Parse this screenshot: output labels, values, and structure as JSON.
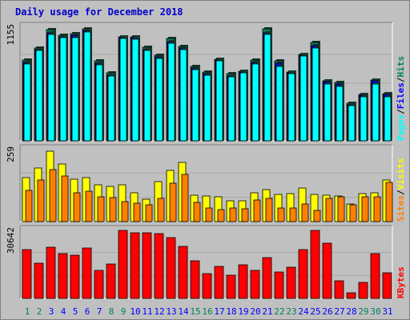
{
  "title": "Daily usage for December 2018",
  "colors": {
    "hits": "#00805c",
    "files": "#0000ff",
    "pages": "#00ffff",
    "visits": "#ffff00",
    "sites": "#ff8000",
    "kbytes": "#ff0000",
    "title": "#0000cc",
    "weekend_day": "#00805c",
    "weekday_day": "#0000ff"
  },
  "chart_data": [
    {
      "type": "bar",
      "panel": "hits-files-pages",
      "y_max_label": "1155",
      "ylim": [
        0,
        1155
      ],
      "series_labels": [
        "Pages",
        "Files",
        "Hits"
      ],
      "categories": [
        "1",
        "2",
        "3",
        "4",
        "5",
        "6",
        "7",
        "8",
        "9",
        "10",
        "11",
        "12",
        "13",
        "14",
        "15",
        "16",
        "17",
        "18",
        "19",
        "20",
        "21",
        "22",
        "23",
        "24",
        "25",
        "26",
        "27",
        "28",
        "29",
        "30",
        "31"
      ],
      "series": [
        {
          "name": "Hits",
          "values": [
            820,
            940,
            1130,
            1070,
            1090,
            1140,
            810,
            690,
            1060,
            1060,
            950,
            870,
            1040,
            960,
            760,
            700,
            830,
            680,
            710,
            820,
            1140,
            810,
            700,
            880,
            1000,
            610,
            590,
            380,
            470,
            620,
            480
          ]
        },
        {
          "name": "Files",
          "values": [
            800,
            930,
            1100,
            1060,
            1070,
            1120,
            790,
            670,
            1050,
            1050,
            930,
            850,
            1010,
            940,
            740,
            680,
            820,
            660,
            700,
            800,
            1100,
            790,
            690,
            870,
            970,
            600,
            580,
            370,
            460,
            610,
            470
          ]
        },
        {
          "name": "Pages",
          "values": [
            780,
            920,
            1080,
            1050,
            1050,
            1110,
            770,
            660,
            1040,
            1030,
            920,
            840,
            990,
            930,
            720,
            670,
            810,
            650,
            690,
            780,
            1080,
            760,
            680,
            860,
            940,
            580,
            550,
            360,
            450,
            580,
            450
          ]
        }
      ]
    },
    {
      "type": "bar",
      "panel": "visits-sites",
      "y_max_label": "259",
      "ylim": [
        0,
        259
      ],
      "series_labels": [
        "Sites",
        "Visits"
      ],
      "categories": [
        "1",
        "2",
        "3",
        "4",
        "5",
        "6",
        "7",
        "8",
        "9",
        "10",
        "11",
        "12",
        "13",
        "14",
        "15",
        "16",
        "17",
        "18",
        "19",
        "20",
        "21",
        "22",
        "23",
        "24",
        "25",
        "26",
        "27",
        "28",
        "29",
        "30",
        "31"
      ],
      "series": [
        {
          "name": "Visits",
          "values": [
            158,
            193,
            253,
            206,
            152,
            158,
            131,
            128,
            133,
            105,
            82,
            145,
            184,
            213,
            94,
            91,
            90,
            76,
            76,
            104,
            116,
            97,
            101,
            121,
            97,
            94,
            93,
            62,
            101,
            104,
            150
          ]
        },
        {
          "name": "Sites",
          "values": [
            112,
            149,
            186,
            165,
            105,
            110,
            88,
            86,
            73,
            66,
            61,
            84,
            138,
            170,
            68,
            48,
            44,
            48,
            46,
            78,
            84,
            48,
            50,
            63,
            40,
            84,
            90,
            60,
            88,
            90,
            140
          ]
        }
      ]
    },
    {
      "type": "bar",
      "panel": "kbytes",
      "y_max_label": "30642",
      "ylim": [
        0,
        30642
      ],
      "series_labels": [
        "KBytes"
      ],
      "categories": [
        "1",
        "2",
        "3",
        "4",
        "5",
        "6",
        "7",
        "8",
        "9",
        "10",
        "11",
        "12",
        "13",
        "14",
        "15",
        "16",
        "17",
        "18",
        "19",
        "20",
        "21",
        "22",
        "23",
        "24",
        "25",
        "26",
        "27",
        "28",
        "29",
        "30",
        "31"
      ],
      "series": [
        {
          "name": "KBytes",
          "values": [
            22000,
            15800,
            23000,
            20100,
            19600,
            22600,
            12500,
            15600,
            30600,
            29700,
            29600,
            29100,
            27500,
            23300,
            17000,
            11100,
            14600,
            10600,
            15100,
            12600,
            18300,
            11800,
            14200,
            21900,
            30600,
            24700,
            8100,
            2700,
            7200,
            20200,
            11600
          ]
        }
      ]
    }
  ],
  "days": [
    {
      "label": "1",
      "weekend": true
    },
    {
      "label": "2",
      "weekend": true
    },
    {
      "label": "3",
      "weekend": false
    },
    {
      "label": "4",
      "weekend": false
    },
    {
      "label": "5",
      "weekend": false
    },
    {
      "label": "6",
      "weekend": false
    },
    {
      "label": "7",
      "weekend": false
    },
    {
      "label": "8",
      "weekend": true
    },
    {
      "label": "9",
      "weekend": true
    },
    {
      "label": "10",
      "weekend": false
    },
    {
      "label": "11",
      "weekend": false
    },
    {
      "label": "12",
      "weekend": false
    },
    {
      "label": "13",
      "weekend": false
    },
    {
      "label": "14",
      "weekend": false
    },
    {
      "label": "15",
      "weekend": true
    },
    {
      "label": "16",
      "weekend": true
    },
    {
      "label": "17",
      "weekend": false
    },
    {
      "label": "18",
      "weekend": false
    },
    {
      "label": "19",
      "weekend": false
    },
    {
      "label": "20",
      "weekend": false
    },
    {
      "label": "21",
      "weekend": false
    },
    {
      "label": "22",
      "weekend": true
    },
    {
      "label": "23",
      "weekend": true
    },
    {
      "label": "24",
      "weekend": false
    },
    {
      "label": "25",
      "weekend": false
    },
    {
      "label": "26",
      "weekend": false
    },
    {
      "label": "27",
      "weekend": false
    },
    {
      "label": "28",
      "weekend": false
    },
    {
      "label": "29",
      "weekend": true
    },
    {
      "label": "30",
      "weekend": true
    },
    {
      "label": "31",
      "weekend": false
    }
  ]
}
